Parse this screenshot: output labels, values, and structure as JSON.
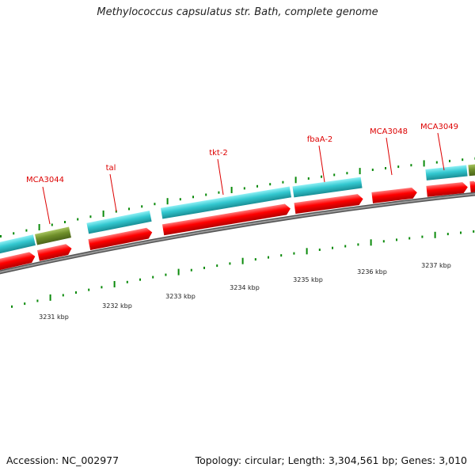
{
  "title": "Methylococcus capsulatus str. Bath, complete genome",
  "footer": {
    "accession": "Accession: NC_002977",
    "summary": "Topology: circular; Length: 3,304,561 bp; Genes: 3,010"
  },
  "gene_labels": [
    {
      "name": "MCA3044"
    },
    {
      "name": "tal"
    },
    {
      "name": "tkt-2"
    },
    {
      "name": "fbaA-2"
    },
    {
      "name": "MCA3048"
    },
    {
      "name": "MCA3049"
    }
  ],
  "scale_labels": [
    "3231 kbp",
    "3232 kbp",
    "3233 kbp",
    "3234 kbp",
    "3235 kbp",
    "3236 kbp",
    "3237 kbp"
  ],
  "colors": {
    "gene_label": "#dd0000",
    "cds_forward": "#ff0000",
    "gene_cyan": "#33c8d0",
    "gene_olive": "#6f8f2a",
    "backbone": "#808080",
    "tick_green": "#0a8a0a"
  }
}
